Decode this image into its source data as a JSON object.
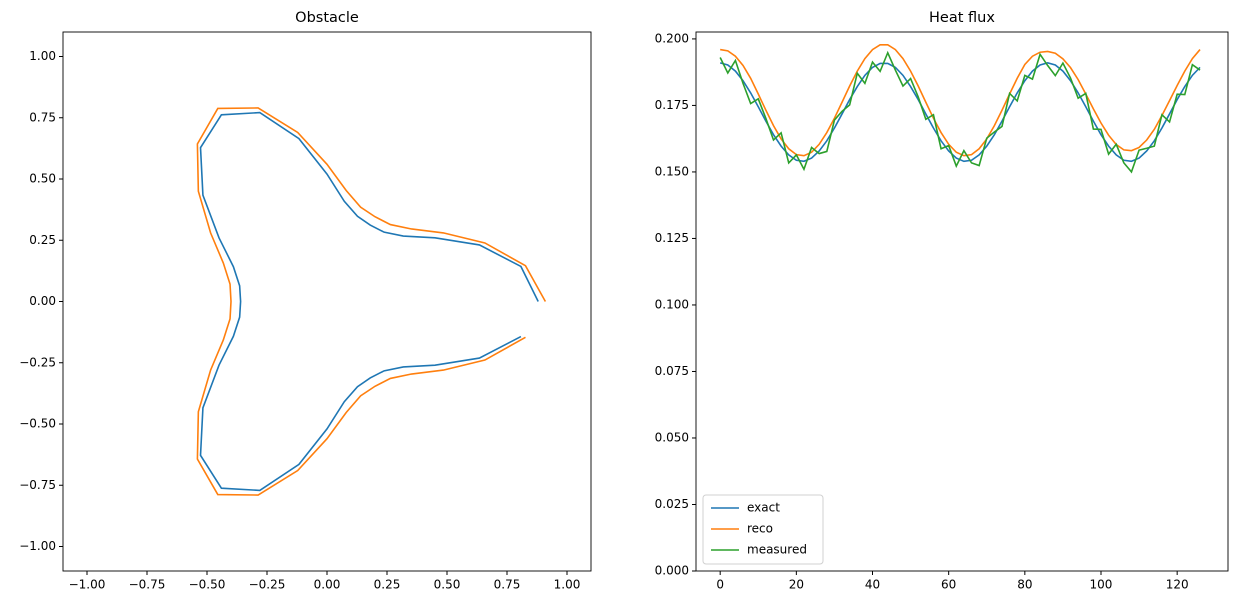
{
  "chart_data": [
    {
      "type": "line",
      "title": "Obstacle",
      "xlim": [
        -1.1,
        1.1
      ],
      "ylim": [
        -1.1,
        1.1
      ],
      "xticks": [
        {
          "value": -1,
          "label": "−1.00"
        },
        {
          "value": -0.75,
          "label": "−0.75"
        },
        {
          "value": -0.5,
          "label": "−0.50"
        },
        {
          "value": -0.25,
          "label": "−0.25"
        },
        {
          "value": 0,
          "label": "0.00"
        },
        {
          "value": 0.25,
          "label": "0.25"
        },
        {
          "value": 0.5,
          "label": "0.50"
        },
        {
          "value": 0.75,
          "label": "0.75"
        },
        {
          "value": 1,
          "label": "1.00"
        }
      ],
      "yticks": [
        {
          "value": -1,
          "label": "−1.00"
        },
        {
          "value": -0.75,
          "label": "−0.75"
        },
        {
          "value": -0.5,
          "label": "−0.50"
        },
        {
          "value": -0.25,
          "label": "−0.25"
        },
        {
          "value": 0,
          "label": "0.00"
        },
        {
          "value": 0.25,
          "label": "0.25"
        },
        {
          "value": 0.5,
          "label": "0.50"
        },
        {
          "value": 0.75,
          "label": "0.75"
        },
        {
          "value": 1,
          "label": "1.00"
        }
      ],
      "series": [
        {
          "color": "#1f77b4",
          "x": [
            0.88,
            0.808,
            0.635,
            0.45,
            0.318,
            0.238,
            0.18,
            0.127,
            0.072,
            0,
            -0.117,
            -0.28,
            -0.44,
            -0.527,
            -0.517,
            -0.45,
            -0.39,
            -0.364,
            -0.36,
            -0.364,
            -0.39,
            -0.45,
            -0.517,
            -0.527,
            -0.44,
            -0.28,
            -0.117,
            0,
            0.072,
            0.127,
            0.18,
            0.238,
            0.318,
            0.45,
            0.635,
            0.808
          ],
          "values": [
            0,
            0.143,
            0.231,
            0.26,
            0.267,
            0.283,
            0.312,
            0.348,
            0.409,
            0.52,
            0.665,
            0.771,
            0.762,
            0.628,
            0.434,
            0.26,
            0.142,
            0.064,
            0,
            -0.064,
            -0.142,
            -0.26,
            -0.434,
            -0.628,
            -0.762,
            -0.771,
            -0.665,
            -0.52,
            -0.409,
            -0.348,
            -0.312,
            -0.283,
            -0.267,
            -0.26,
            -0.231,
            -0.143
          ]
        },
        {
          "color": "#ff7f0e",
          "x": [
            0.91,
            0.827,
            0.658,
            0.485,
            0.352,
            0.264,
            0.2,
            0.14,
            0.08,
            0,
            -0.122,
            -0.287,
            -0.455,
            -0.54,
            -0.536,
            -0.485,
            -0.432,
            -0.404,
            -0.4,
            -0.404,
            -0.432,
            -0.485,
            -0.536,
            -0.54,
            -0.455,
            -0.287,
            -0.122,
            0,
            0.08,
            0.14,
            0.2,
            0.264,
            0.352,
            0.485,
            0.658,
            0.827
          ],
          "values": [
            0,
            0.146,
            0.239,
            0.28,
            0.296,
            0.314,
            0.346,
            0.385,
            0.453,
            0.56,
            0.69,
            0.79,
            0.788,
            0.643,
            0.45,
            0.28,
            0.157,
            0.071,
            0,
            -0.071,
            -0.157,
            -0.28,
            -0.45,
            -0.643,
            -0.788,
            -0.79,
            -0.69,
            -0.56,
            -0.453,
            -0.385,
            -0.346,
            -0.314,
            -0.296,
            -0.28,
            -0.239,
            -0.146
          ]
        }
      ]
    },
    {
      "type": "line",
      "title": "Heat flux",
      "legend": "lower left",
      "xlim": [
        -6.35,
        133.35
      ],
      "ylim": [
        0,
        0.2026
      ],
      "xticks": [
        0,
        20,
        40,
        60,
        80,
        100,
        120
      ],
      "yticks": [
        {
          "value": 0,
          "label": "0.000"
        },
        {
          "value": 0.025,
          "label": "0.025"
        },
        {
          "value": 0.05,
          "label": "0.050"
        },
        {
          "value": 0.075,
          "label": "0.075"
        },
        {
          "value": 0.1,
          "label": "0.100"
        },
        {
          "value": 0.125,
          "label": "0.125"
        },
        {
          "value": 0.15,
          "label": "0.150"
        },
        {
          "value": 0.175,
          "label": "0.175"
        },
        {
          "value": 0.2,
          "label": "0.200"
        }
      ],
      "x": [
        0,
        2,
        4,
        6,
        8,
        10,
        12,
        14,
        16,
        18,
        20,
        22,
        24,
        26,
        28,
        30,
        32,
        34,
        36,
        38,
        40,
        42,
        44,
        46,
        48,
        50,
        52,
        54,
        56,
        58,
        60,
        62,
        64,
        66,
        68,
        70,
        72,
        74,
        76,
        78,
        80,
        82,
        84,
        86,
        88,
        90,
        92,
        94,
        96,
        98,
        100,
        102,
        104,
        106,
        108,
        110,
        112,
        114,
        116,
        118,
        120,
        122,
        124,
        126
      ],
      "series": [
        {
          "name": "exact",
          "color": "#1f77b4",
          "values": [
            0.191,
            0.1902,
            0.1879,
            0.1843,
            0.1797,
            0.1745,
            0.1691,
            0.164,
            0.1597,
            0.1564,
            0.1544,
            0.154,
            0.1552,
            0.1579,
            0.1617,
            0.1665,
            0.1718,
            0.1772,
            0.1821,
            0.1863,
            0.1893,
            0.1908,
            0.1908,
            0.1893,
            0.1863,
            0.1821,
            0.1772,
            0.1718,
            0.1665,
            0.1617,
            0.1579,
            0.1552,
            0.154,
            0.1544,
            0.1564,
            0.1597,
            0.164,
            0.1691,
            0.1745,
            0.1797,
            0.1843,
            0.1879,
            0.1902,
            0.191,
            0.1902,
            0.1879,
            0.1843,
            0.1797,
            0.1745,
            0.1691,
            0.164,
            0.1597,
            0.1564,
            0.1544,
            0.154,
            0.1552,
            0.1579,
            0.1617,
            0.1665,
            0.1718,
            0.1772,
            0.1821,
            0.1863,
            0.1893
          ]
        },
        {
          "name": "reco",
          "color": "#ff7f0e",
          "values": [
            0.196,
            0.1955,
            0.1935,
            0.19,
            0.1852,
            0.1793,
            0.1732,
            0.1674,
            0.1624,
            0.1587,
            0.1565,
            0.1561,
            0.1574,
            0.1604,
            0.1648,
            0.1702,
            0.1762,
            0.1823,
            0.1879,
            0.1926,
            0.196,
            0.1978,
            0.1978,
            0.196,
            0.1926,
            0.1879,
            0.1823,
            0.1762,
            0.1702,
            0.1648,
            0.1604,
            0.1574,
            0.1561,
            0.1565,
            0.1587,
            0.1624,
            0.1674,
            0.1732,
            0.1793,
            0.1852,
            0.1904,
            0.1935,
            0.195,
            0.1953,
            0.1946,
            0.1925,
            0.1892,
            0.1847,
            0.1793,
            0.1737,
            0.1684,
            0.1638,
            0.1603,
            0.1583,
            0.158,
            0.1592,
            0.162,
            0.166,
            0.1712,
            0.1768,
            0.1825,
            0.1879,
            0.1926,
            0.196
          ]
        },
        {
          "name": "measured",
          "color": "#2ca02c",
          "values": [
            0.193,
            0.1872,
            0.1919,
            0.1833,
            0.1757,
            0.1775,
            0.1701,
            0.162,
            0.1647,
            0.1534,
            0.1564,
            0.151,
            0.1592,
            0.1569,
            0.1577,
            0.1695,
            0.1728,
            0.1752,
            0.1871,
            0.1833,
            0.1913,
            0.1878,
            0.1948,
            0.1883,
            0.1823,
            0.1851,
            0.1782,
            0.1698,
            0.1715,
            0.1587,
            0.1599,
            0.1522,
            0.158,
            0.1534,
            0.1524,
            0.1627,
            0.165,
            0.1671,
            0.1795,
            0.1767,
            0.1863,
            0.1849,
            0.1942,
            0.19,
            0.1862,
            0.1909,
            0.1853,
            0.1777,
            0.1795,
            0.1661,
            0.166,
            0.1567,
            0.1604,
            0.1534,
            0.15,
            0.1582,
            0.1589,
            0.1597,
            0.1715,
            0.1688,
            0.1792,
            0.1791,
            0.1903,
            0.1883
          ]
        }
      ]
    }
  ]
}
